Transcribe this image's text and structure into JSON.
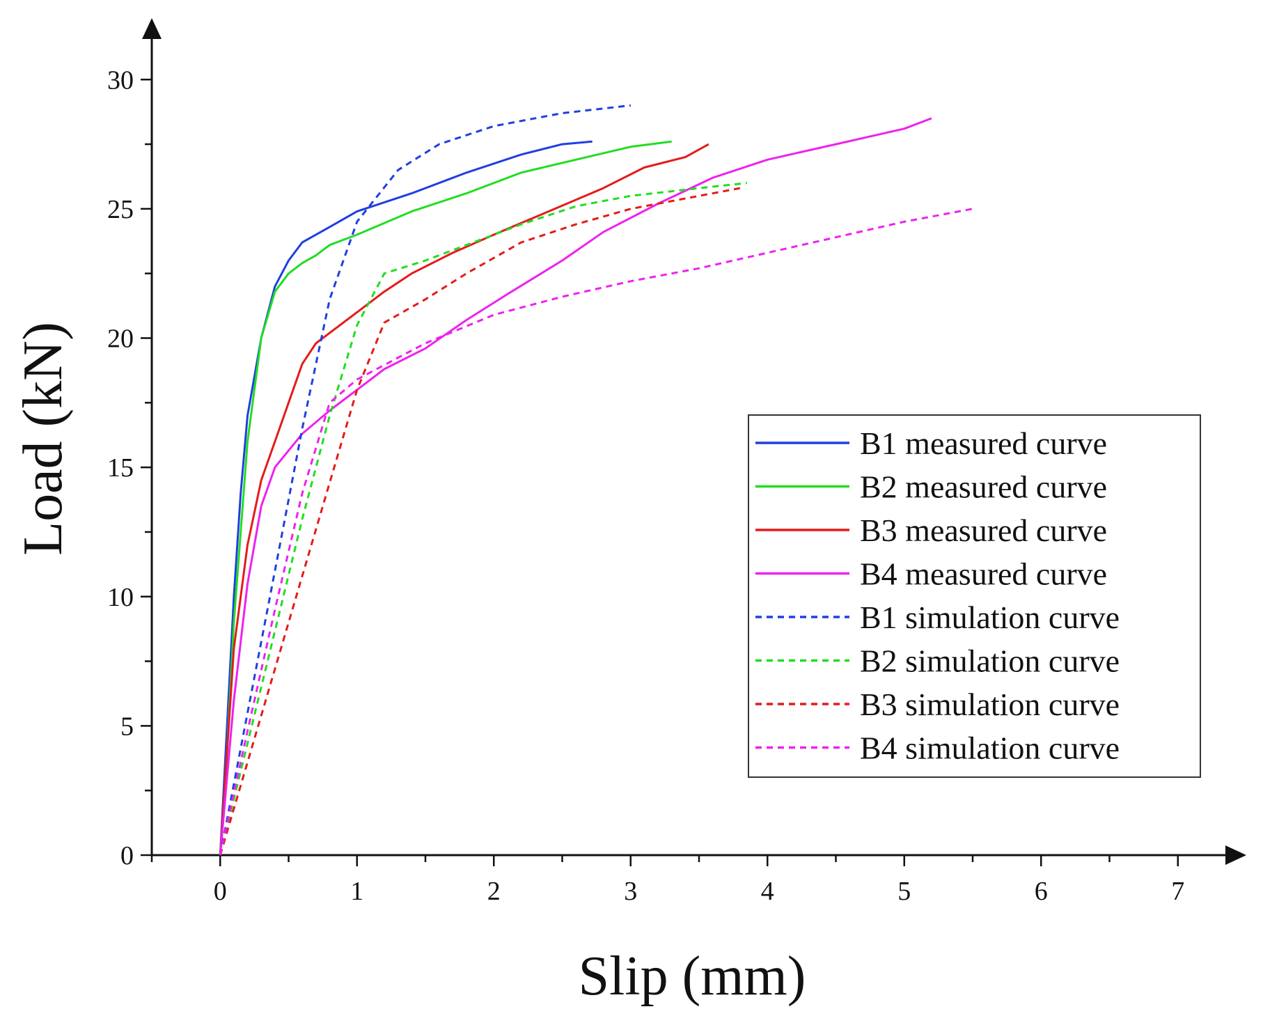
{
  "chart_data": {
    "type": "line",
    "xlabel": "Slip (mm)",
    "ylabel": "Load (kN)",
    "xlim": [
      -0.5,
      7.5
    ],
    "ylim": [
      0,
      32
    ],
    "xticks": [
      0,
      1,
      2,
      3,
      4,
      5,
      6,
      7
    ],
    "yticks": [
      0,
      5,
      10,
      15,
      20,
      25,
      30
    ],
    "grid": false,
    "legend_position": "lower-right",
    "series": [
      {
        "name": "B1 measured curve",
        "color": "#1f3fe0",
        "dash": "solid",
        "x": [
          0,
          0.05,
          0.1,
          0.15,
          0.2,
          0.3,
          0.4,
          0.5,
          0.6,
          0.8,
          1.0,
          1.4,
          1.8,
          2.2,
          2.5,
          2.72
        ],
        "y": [
          0,
          5,
          10,
          14,
          17,
          20,
          22,
          23,
          23.7,
          24.3,
          24.9,
          25.6,
          26.4,
          27.1,
          27.5,
          27.6
        ]
      },
      {
        "name": "B2 measured curve",
        "color": "#22dd22",
        "dash": "solid",
        "x": [
          0,
          0.05,
          0.1,
          0.2,
          0.3,
          0.4,
          0.5,
          0.6,
          0.7,
          0.8,
          1.0,
          1.4,
          1.8,
          2.2,
          2.6,
          3.0,
          3.3
        ],
        "y": [
          0,
          4,
          9,
          16,
          20,
          21.8,
          22.5,
          22.9,
          23.2,
          23.6,
          24,
          24.9,
          25.6,
          26.4,
          26.9,
          27.4,
          27.6
        ]
      },
      {
        "name": "B3 measured curve",
        "color": "#e51a1a",
        "dash": "solid",
        "x": [
          0,
          0.05,
          0.1,
          0.2,
          0.3,
          0.4,
          0.5,
          0.6,
          0.7,
          0.8,
          1.0,
          1.2,
          1.4,
          1.7,
          2.0,
          2.4,
          2.8,
          3.1,
          3.4,
          3.57
        ],
        "y": [
          0,
          4,
          8,
          12,
          14.5,
          16,
          17.5,
          19,
          19.8,
          20.2,
          21,
          21.8,
          22.5,
          23.3,
          24,
          24.9,
          25.8,
          26.6,
          27,
          27.5
        ]
      },
      {
        "name": "B4 measured curve",
        "color": "#ee22ee",
        "dash": "solid",
        "x": [
          0,
          0.05,
          0.1,
          0.2,
          0.3,
          0.4,
          0.6,
          0.8,
          1.0,
          1.2,
          1.5,
          1.8,
          2.1,
          2.5,
          2.8,
          3.2,
          3.6,
          4.0,
          4.5,
          5.0,
          5.2
        ],
        "y": [
          0,
          3,
          6,
          10.5,
          13.5,
          15,
          16.3,
          17.2,
          18,
          18.8,
          19.6,
          20.7,
          21.7,
          23,
          24.1,
          25.2,
          26.2,
          26.9,
          27.5,
          28.1,
          28.5
        ]
      },
      {
        "name": "B1 simulation curve",
        "color": "#1f3fe0",
        "dash": "dashed",
        "x": [
          0,
          0.2,
          0.4,
          0.6,
          0.8,
          1.0,
          1.3,
          1.6,
          2.0,
          2.5,
          3.0
        ],
        "y": [
          0,
          5.5,
          11,
          16.5,
          21.5,
          24.5,
          26.5,
          27.5,
          28.2,
          28.7,
          29
        ]
      },
      {
        "name": "B2 simulation curve",
        "color": "#22dd22",
        "dash": "dashed",
        "x": [
          0,
          0.3,
          0.6,
          0.8,
          1.0,
          1.2,
          1.5,
          1.8,
          2.2,
          2.6,
          3.0,
          3.5,
          3.85
        ],
        "y": [
          0,
          6.5,
          13,
          17,
          20.5,
          22.5,
          23,
          23.6,
          24.4,
          25.1,
          25.5,
          25.8,
          26
        ]
      },
      {
        "name": "B3 simulation curve",
        "color": "#e51a1a",
        "dash": "dashed",
        "x": [
          0,
          0.25,
          0.5,
          0.75,
          1.0,
          1.2,
          1.5,
          1.8,
          2.2,
          2.6,
          3.0,
          3.4,
          3.8
        ],
        "y": [
          0,
          4.5,
          9,
          13.5,
          18,
          20.6,
          21.5,
          22.5,
          23.7,
          24.4,
          25,
          25.4,
          25.8
        ]
      },
      {
        "name": "B4 simulation curve",
        "color": "#ee22ee",
        "dash": "dashed",
        "x": [
          0,
          0.2,
          0.4,
          0.6,
          0.8,
          1.0,
          1.5,
          2.0,
          2.5,
          3.0,
          3.5,
          4.0,
          4.5,
          5.0,
          5.5
        ],
        "y": [
          0,
          4.8,
          9.5,
          14,
          17.5,
          18.4,
          19.8,
          20.9,
          21.6,
          22.2,
          22.7,
          23.3,
          23.9,
          24.5,
          25
        ]
      }
    ]
  }
}
